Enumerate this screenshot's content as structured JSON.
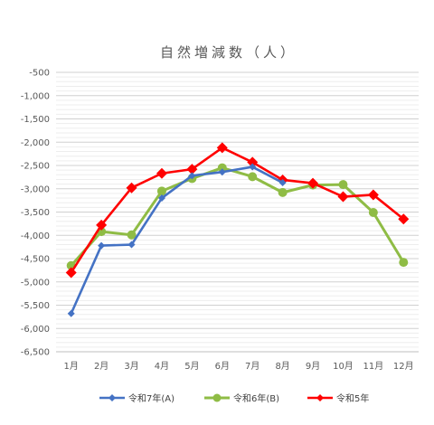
{
  "chart_data": {
    "type": "line",
    "title": "自然増減数（人）",
    "categories": [
      "1月",
      "2月",
      "3月",
      "4月",
      "5月",
      "6月",
      "7月",
      "8月",
      "9月",
      "10月",
      "11月",
      "12月"
    ],
    "y_ticks": [
      "-500",
      "-1,000",
      "-1,500",
      "-2,000",
      "-2,500",
      "-3,000",
      "-3,500",
      "-4,000",
      "-4,500",
      "-5,000",
      "-5,500",
      "-6,000",
      "-6,500"
    ],
    "ylim": [
      -6500,
      -500
    ],
    "y_reversed": true,
    "grid": true,
    "legend_position": "bottom",
    "series": [
      {
        "name": "令和7年(A)",
        "color": "#4472c4",
        "marker": "diamond",
        "values": [
          -5680,
          -4220,
          -4200,
          -3200,
          -2720,
          -2640,
          -2530,
          -2870,
          null,
          null,
          null,
          null
        ]
      },
      {
        "name": "令和6年(B)",
        "color": "#8fbc45",
        "marker": "circle",
        "values": [
          -4650,
          -3920,
          -3990,
          -3050,
          -2780,
          -2550,
          -2740,
          -3080,
          -2920,
          -2910,
          -3510,
          -4580
        ]
      },
      {
        "name": "令和5年",
        "color": "#ff0000",
        "marker": "diamond",
        "values": [
          -4800,
          -3780,
          -2980,
          -2670,
          -2580,
          -2120,
          -2430,
          -2810,
          -2880,
          -3170,
          -3130,
          -3650
        ]
      }
    ]
  }
}
